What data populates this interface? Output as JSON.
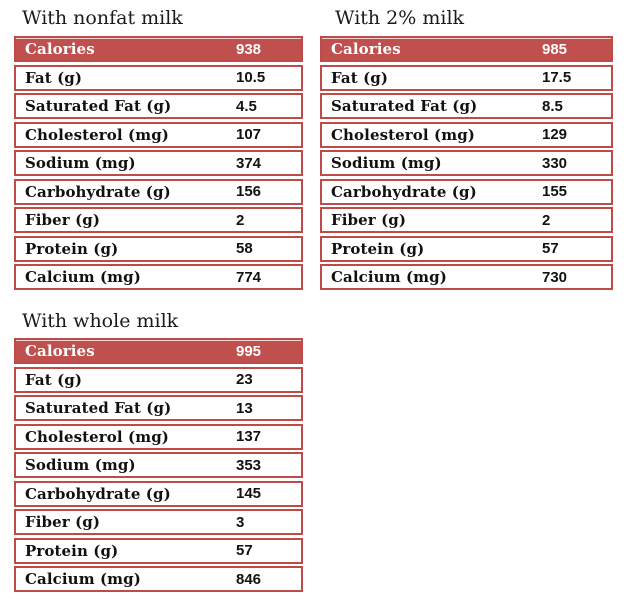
{
  "accent_color": "#c0504d",
  "tables": [
    {
      "title": "With nonfat milk",
      "header": {
        "label": "Calories",
        "value": "938"
      },
      "rows": [
        {
          "label": "Fat (g)",
          "value": "10.5"
        },
        {
          "label": "Saturated Fat (g)",
          "value": "4.5"
        },
        {
          "label": "Cholesterol (mg)",
          "value": "107"
        },
        {
          "label": "Sodium (mg)",
          "value": "374"
        },
        {
          "label": "Carbohydrate (g)",
          "value": "156"
        },
        {
          "label": "Fiber (g)",
          "value": "2"
        },
        {
          "label": "Protein (g)",
          "value": "58"
        },
        {
          "label": "Calcium (mg)",
          "value": "774"
        }
      ]
    },
    {
      "title": "With 2% milk",
      "header": {
        "label": "Calories",
        "value": "985"
      },
      "rows": [
        {
          "label": "Fat (g)",
          "value": "17.5"
        },
        {
          "label": "Saturated Fat (g)",
          "value": "8.5"
        },
        {
          "label": "Cholesterol (mg)",
          "value": "129"
        },
        {
          "label": "Sodium (mg)",
          "value": "330"
        },
        {
          "label": "Carbohydrate (g)",
          "value": "155"
        },
        {
          "label": "Fiber (g)",
          "value": "2"
        },
        {
          "label": "Protein (g)",
          "value": "57"
        },
        {
          "label": "Calcium (mg)",
          "value": "730"
        }
      ]
    },
    {
      "title": "With whole milk",
      "header": {
        "label": "Calories",
        "value": "995"
      },
      "rows": [
        {
          "label": "Fat (g)",
          "value": "23"
        },
        {
          "label": "Saturated Fat (g)",
          "value": "13"
        },
        {
          "label": "Cholesterol (mg)",
          "value": "137"
        },
        {
          "label": "Sodium (mg)",
          "value": "353"
        },
        {
          "label": "Carbohydrate (g)",
          "value": "145"
        },
        {
          "label": "Fiber (g)",
          "value": "3"
        },
        {
          "label": "Protein (g)",
          "value": "57"
        },
        {
          "label": "Calcium (mg)",
          "value": "846"
        }
      ]
    }
  ]
}
